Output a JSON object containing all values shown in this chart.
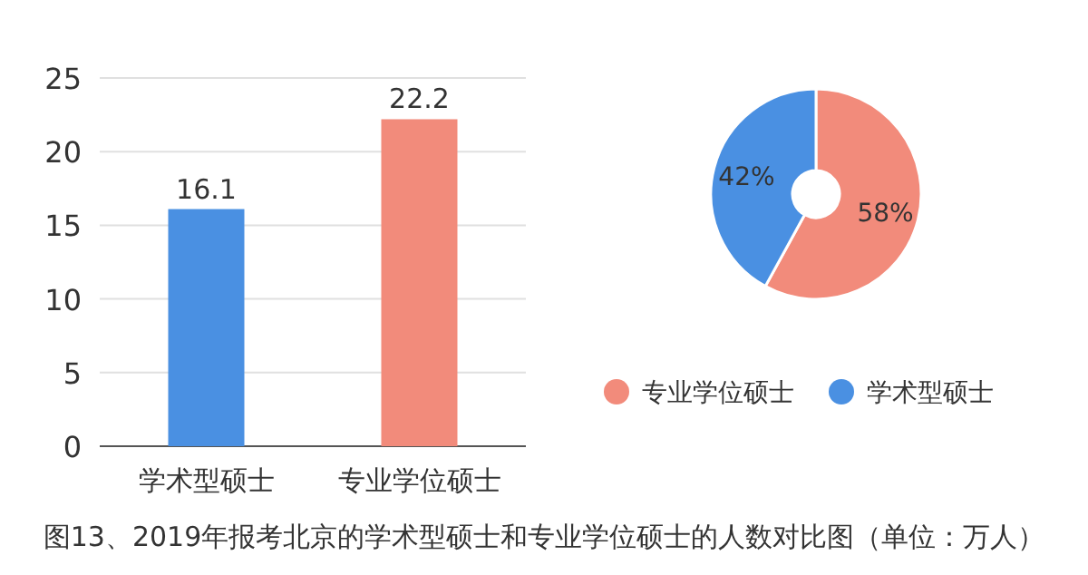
{
  "chart_data": [
    {
      "type": "bar",
      "categories": [
        "学术型硕士",
        "专业学位硕士"
      ],
      "values": [
        16.1,
        22.2
      ],
      "colors": [
        "#4a90e2",
        "#f28b7b"
      ],
      "ylim": [
        0,
        25
      ],
      "yticks": [
        0,
        5,
        10,
        15,
        20,
        25
      ],
      "grid": "y",
      "data_labels": true,
      "annotations": [
        "图13、2019年报考北京的学术型硕士和专业学位硕士的人数对比图（单位：万人）"
      ]
    },
    {
      "type": "donut",
      "categories": [
        "专业学位硕士",
        "学术型硕士"
      ],
      "values": [
        58,
        42
      ],
      "colors": [
        "#f28b7b",
        "#4a90e2"
      ],
      "value_labels": [
        "58%",
        "42%"
      ],
      "legend": "bottom"
    }
  ]
}
